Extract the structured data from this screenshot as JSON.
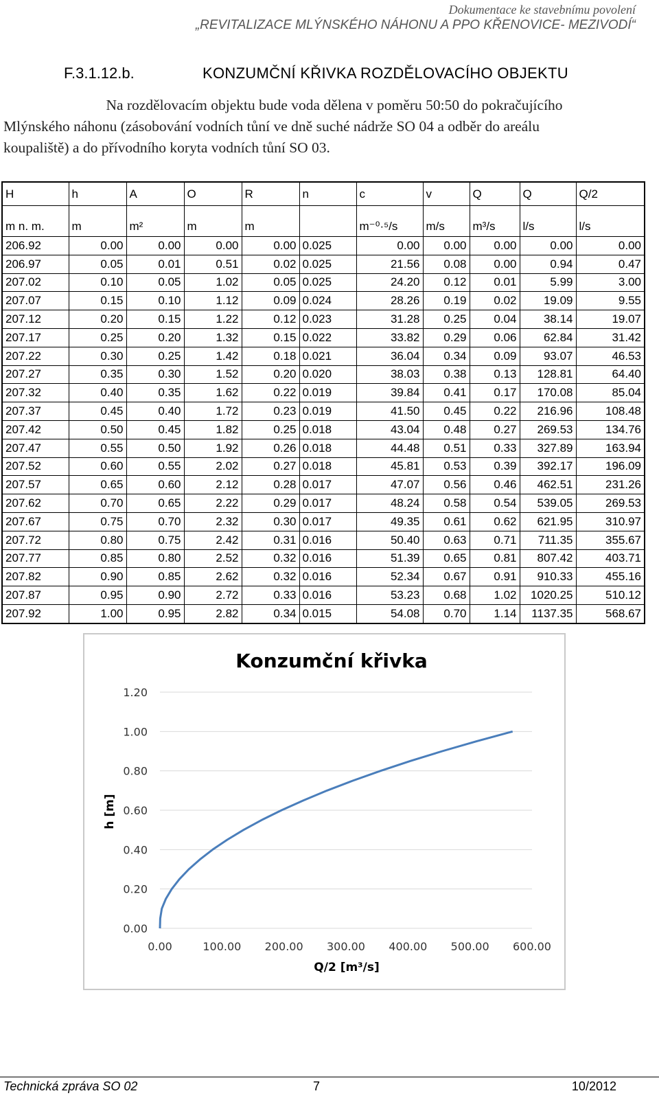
{
  "header": {
    "line1": "Dokumentace ke stavebnímu povolení",
    "line2": "„REVITALIZACE MLÝNSKÉHO NÁHONU A PPO KŘENOVICE- MEZIVODÍ“"
  },
  "section": {
    "number": "F.3.1.12.b.",
    "title": "KONZUMČNÍ KŘIVKA ROZDĚLOVACÍHO OBJEKTU"
  },
  "paragraph": {
    "line1": "Na rozdělovacím objektu bude voda dělena v poměru 50:50 do pokračujícího",
    "line2": "Mlýnského náhonu (zásobování vodních tůní ve dně suché nádrže SO 04 a odběr do areálu",
    "line3": "koupaliště) a do přívodního koryta vodních tůní SO 03."
  },
  "table": {
    "headers": [
      "H",
      "h",
      "A",
      "O",
      "R",
      "n",
      "c",
      "v",
      "Q",
      "Q",
      "Q/2"
    ],
    "units": [
      "m n. m.",
      "m",
      "m²",
      "m",
      "m",
      "",
      "m⁻⁰·⁵/s",
      "m/s",
      "m³/s",
      "l/s",
      "l/s"
    ],
    "rows": [
      [
        "206.92",
        "0.00",
        "0.00",
        "0.00",
        "0.00",
        "0.025",
        "0.00",
        "0.00",
        "0.00",
        "0.00",
        "0.00"
      ],
      [
        "206.97",
        "0.05",
        "0.01",
        "0.51",
        "0.02",
        "0.025",
        "21.56",
        "0.08",
        "0.00",
        "0.94",
        "0.47"
      ],
      [
        "207.02",
        "0.10",
        "0.05",
        "1.02",
        "0.05",
        "0.025",
        "24.20",
        "0.12",
        "0.01",
        "5.99",
        "3.00"
      ],
      [
        "207.07",
        "0.15",
        "0.10",
        "1.12",
        "0.09",
        "0.024",
        "28.26",
        "0.19",
        "0.02",
        "19.09",
        "9.55"
      ],
      [
        "207.12",
        "0.20",
        "0.15",
        "1.22",
        "0.12",
        "0.023",
        "31.28",
        "0.25",
        "0.04",
        "38.14",
        "19.07"
      ],
      [
        "207.17",
        "0.25",
        "0.20",
        "1.32",
        "0.15",
        "0.022",
        "33.82",
        "0.29",
        "0.06",
        "62.84",
        "31.42"
      ],
      [
        "207.22",
        "0.30",
        "0.25",
        "1.42",
        "0.18",
        "0.021",
        "36.04",
        "0.34",
        "0.09",
        "93.07",
        "46.53"
      ],
      [
        "207.27",
        "0.35",
        "0.30",
        "1.52",
        "0.20",
        "0.020",
        "38.03",
        "0.38",
        "0.13",
        "128.81",
        "64.40"
      ],
      [
        "207.32",
        "0.40",
        "0.35",
        "1.62",
        "0.22",
        "0.019",
        "39.84",
        "0.41",
        "0.17",
        "170.08",
        "85.04"
      ],
      [
        "207.37",
        "0.45",
        "0.40",
        "1.72",
        "0.23",
        "0.019",
        "41.50",
        "0.45",
        "0.22",
        "216.96",
        "108.48"
      ],
      [
        "207.42",
        "0.50",
        "0.45",
        "1.82",
        "0.25",
        "0.018",
        "43.04",
        "0.48",
        "0.27",
        "269.53",
        "134.76"
      ],
      [
        "207.47",
        "0.55",
        "0.50",
        "1.92",
        "0.26",
        "0.018",
        "44.48",
        "0.51",
        "0.33",
        "327.89",
        "163.94"
      ],
      [
        "207.52",
        "0.60",
        "0.55",
        "2.02",
        "0.27",
        "0.018",
        "45.81",
        "0.53",
        "0.39",
        "392.17",
        "196.09"
      ],
      [
        "207.57",
        "0.65",
        "0.60",
        "2.12",
        "0.28",
        "0.017",
        "47.07",
        "0.56",
        "0.46",
        "462.51",
        "231.26"
      ],
      [
        "207.62",
        "0.70",
        "0.65",
        "2.22",
        "0.29",
        "0.017",
        "48.24",
        "0.58",
        "0.54",
        "539.05",
        "269.53"
      ],
      [
        "207.67",
        "0.75",
        "0.70",
        "2.32",
        "0.30",
        "0.017",
        "49.35",
        "0.61",
        "0.62",
        "621.95",
        "310.97"
      ],
      [
        "207.72",
        "0.80",
        "0.75",
        "2.42",
        "0.31",
        "0.016",
        "50.40",
        "0.63",
        "0.71",
        "711.35",
        "355.67"
      ],
      [
        "207.77",
        "0.85",
        "0.80",
        "2.52",
        "0.32",
        "0.016",
        "51.39",
        "0.65",
        "0.81",
        "807.42",
        "403.71"
      ],
      [
        "207.82",
        "0.90",
        "0.85",
        "2.62",
        "0.32",
        "0.016",
        "52.34",
        "0.67",
        "0.91",
        "910.33",
        "455.16"
      ],
      [
        "207.87",
        "0.95",
        "0.90",
        "2.72",
        "0.33",
        "0.016",
        "53.23",
        "0.68",
        "1.02",
        "1020.25",
        "510.12"
      ],
      [
        "207.92",
        "1.00",
        "0.95",
        "2.82",
        "0.34",
        "0.015",
        "54.08",
        "0.70",
        "1.14",
        "1137.35",
        "568.67"
      ]
    ]
  },
  "chart_data": {
    "type": "line",
    "title": "Konzumční křivka",
    "xlabel": "Q/2 [m³/s]",
    "ylabel": "h [m]",
    "xlim": [
      0,
      600
    ],
    "ylim": [
      0,
      1.2
    ],
    "xticks": [
      "0.00",
      "100.00",
      "200.00",
      "300.00",
      "400.00",
      "500.00",
      "600.00"
    ],
    "yticks": [
      "0.00",
      "0.20",
      "0.40",
      "0.60",
      "0.80",
      "1.00",
      "1.20"
    ],
    "grid": true,
    "color": "#4a7ebb",
    "x": [
      0.0,
      0.47,
      3.0,
      9.55,
      19.07,
      31.42,
      46.53,
      64.4,
      85.04,
      108.48,
      134.76,
      163.94,
      196.09,
      231.26,
      269.53,
      310.97,
      355.67,
      403.71,
      455.16,
      510.12,
      568.67
    ],
    "y": [
      0.0,
      0.05,
      0.1,
      0.15,
      0.2,
      0.25,
      0.3,
      0.35,
      0.4,
      0.45,
      0.5,
      0.55,
      0.6,
      0.65,
      0.7,
      0.75,
      0.8,
      0.85,
      0.9,
      0.95,
      1.0
    ]
  },
  "footer": {
    "left": "Technická zpráva SO 02",
    "page": "7",
    "date": "10/2012"
  }
}
